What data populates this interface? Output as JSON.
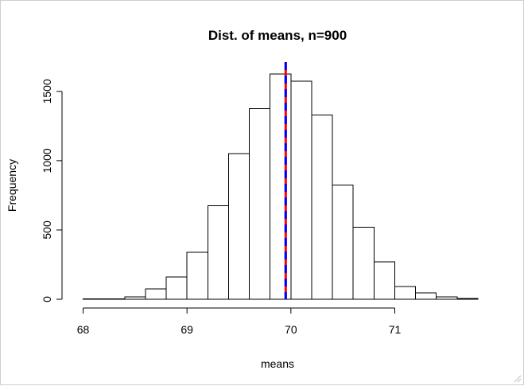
{
  "chart_data": {
    "type": "bar",
    "title": "Dist. of means, n=900",
    "xlabel": "means",
    "ylabel": "Frequency",
    "bin_width": 0.2,
    "bins": [
      {
        "start": 68.0,
        "end": 68.2,
        "count": 2
      },
      {
        "start": 68.2,
        "end": 68.4,
        "count": 3
      },
      {
        "start": 68.4,
        "end": 68.6,
        "count": 18
      },
      {
        "start": 68.6,
        "end": 68.8,
        "count": 75
      },
      {
        "start": 68.8,
        "end": 69.0,
        "count": 160
      },
      {
        "start": 69.0,
        "end": 69.2,
        "count": 340
      },
      {
        "start": 69.2,
        "end": 69.4,
        "count": 675
      },
      {
        "start": 69.4,
        "end": 69.6,
        "count": 1050
      },
      {
        "start": 69.6,
        "end": 69.8,
        "count": 1375
      },
      {
        "start": 69.8,
        "end": 70.0,
        "count": 1625
      },
      {
        "start": 70.0,
        "end": 70.2,
        "count": 1575
      },
      {
        "start": 70.2,
        "end": 70.4,
        "count": 1330
      },
      {
        "start": 70.4,
        "end": 70.6,
        "count": 825
      },
      {
        "start": 70.6,
        "end": 70.8,
        "count": 520
      },
      {
        "start": 70.8,
        "end": 71.0,
        "count": 270
      },
      {
        "start": 71.0,
        "end": 71.2,
        "count": 92
      },
      {
        "start": 71.2,
        "end": 71.4,
        "count": 45
      },
      {
        "start": 71.4,
        "end": 71.6,
        "count": 16
      },
      {
        "start": 71.6,
        "end": 71.8,
        "count": 5
      }
    ],
    "x_ticks": [
      68,
      69,
      70,
      71
    ],
    "x_tick_labels": [
      "68",
      "69",
      "70",
      "71"
    ],
    "y_ticks": [
      0,
      500,
      1000,
      1500
    ],
    "y_tick_labels": [
      "0",
      "500",
      "1000",
      "1500"
    ],
    "xlim": [
      67.95,
      71.8
    ],
    "ylim": [
      0,
      1700
    ],
    "vlines": [
      {
        "x": 69.95,
        "color": "#ff0000",
        "style": "solid"
      },
      {
        "x": 69.95,
        "color": "#0000ff",
        "style": "dashed"
      }
    ],
    "grid": false,
    "bar_fill": "#ffffff",
    "bar_stroke": "#000000"
  }
}
